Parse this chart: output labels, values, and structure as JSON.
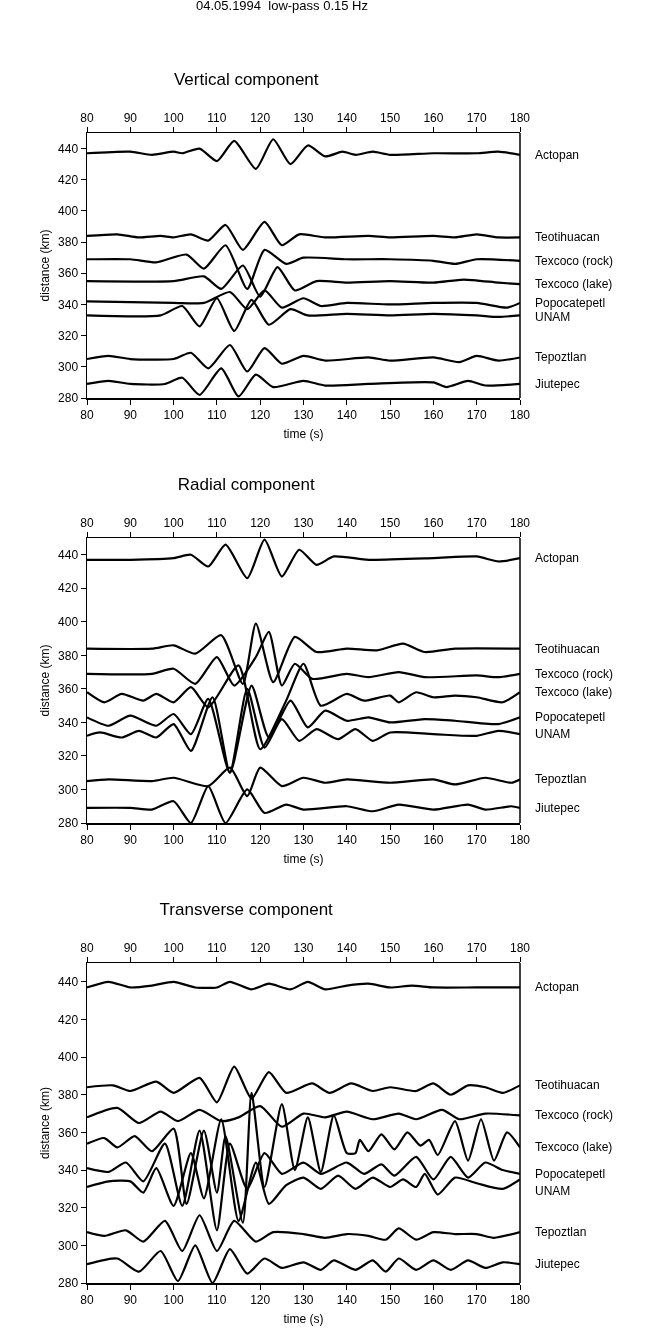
{
  "chart_data": [
    {
      "type": "line",
      "title": "Vertical component",
      "annotations": [
        "04.05.1994  low-pass 0.15 Hz"
      ],
      "xlabel": "time (s)",
      "ylabel": "distance (km)",
      "xlim": [
        80,
        180
      ],
      "xticks": [
        80,
        90,
        100,
        110,
        120,
        130,
        140,
        150,
        160,
        170,
        180
      ],
      "x2lim": [
        80,
        180
      ],
      "x2ticks": [
        80,
        90,
        100,
        110,
        120,
        130,
        140,
        150,
        160,
        170,
        180
      ],
      "ylim": [
        280,
        450
      ],
      "yticks": [
        280,
        300,
        320,
        340,
        360,
        380,
        400,
        420,
        440
      ],
      "grid": false,
      "legend": false,
      "marker": "none",
      "line_style": "solid",
      "series": [
        {
          "name": "Actopan",
          "color": "#000000",
          "x": [
            80,
            90,
            95,
            100,
            102,
            106,
            110,
            114,
            119,
            123,
            127,
            131,
            135,
            139,
            142,
            146,
            150,
            160,
            170,
            175,
            180
          ],
          "values": [
            437,
            438,
            436,
            438,
            437,
            440,
            432,
            445,
            427,
            446,
            430,
            442,
            435,
            438,
            436,
            438,
            436,
            437,
            437,
            438,
            436
          ]
        },
        {
          "name": "Teotihuacan",
          "color": "#000000",
          "x": [
            80,
            87,
            92,
            97,
            100,
            104,
            108,
            112,
            116,
            121,
            125,
            129,
            135,
            145,
            150,
            160,
            165,
            170,
            175,
            180
          ],
          "values": [
            384,
            385,
            383,
            384,
            383,
            385,
            381,
            391,
            375,
            393,
            378,
            385,
            383,
            384,
            383,
            384,
            383,
            385,
            383,
            383
          ]
        },
        {
          "name": "Texcoco (rock)",
          "color": "#000000",
          "x": [
            80,
            90,
            96,
            103,
            107,
            112,
            117,
            121,
            126,
            130,
            140,
            150,
            160,
            165,
            170,
            180
          ],
          "values": [
            369,
            369,
            367,
            372,
            363,
            378,
            350,
            375,
            366,
            370,
            369,
            369,
            368,
            366,
            369,
            368
          ]
        },
        {
          "name": "Texcoco (lake)",
          "color": "#000000",
          "x": [
            80,
            100,
            107,
            111,
            116,
            120,
            124,
            128,
            133,
            140,
            150,
            160,
            167,
            175,
            180
          ],
          "values": [
            355,
            355,
            358,
            350,
            365,
            345,
            364,
            349,
            355,
            354,
            355,
            354,
            356,
            354,
            353
          ]
        },
        {
          "name": "Popocatepetl",
          "color": "#000000",
          "x": [
            80,
            100,
            107,
            113,
            117,
            121,
            125,
            130,
            134,
            140,
            150,
            160,
            170,
            177,
            180
          ],
          "values": [
            342,
            341,
            341,
            348,
            337,
            349,
            338,
            344,
            339,
            341,
            340,
            341,
            341,
            338,
            341
          ]
        },
        {
          "name": "UNAM",
          "color": "#000000",
          "x": [
            80,
            97,
            102,
            106,
            110,
            114,
            118,
            122,
            127,
            131,
            140,
            150,
            160,
            170,
            175,
            180
          ],
          "values": [
            333,
            333,
            339,
            326,
            344,
            323,
            343,
            327,
            337,
            333,
            334,
            333,
            334,
            333,
            332,
            333
          ]
        },
        {
          "name": "Tepoztlan",
          "color": "#000000",
          "x": [
            80,
            85,
            90,
            100,
            104,
            108,
            113,
            117,
            121,
            125,
            130,
            135,
            145,
            150,
            160,
            166,
            170,
            175,
            180
          ],
          "values": [
            305,
            307,
            305,
            305,
            309,
            299,
            314,
            297,
            312,
            302,
            307,
            304,
            306,
            304,
            306,
            303,
            307,
            304,
            306
          ]
        },
        {
          "name": "Jiutepec",
          "color": "#000000",
          "x": [
            80,
            85,
            90,
            98,
            102,
            106,
            111,
            115,
            119,
            123,
            130,
            135,
            145,
            160,
            163,
            168,
            172,
            180
          ],
          "values": [
            289,
            291,
            289,
            289,
            293,
            282,
            299,
            281,
            295,
            287,
            291,
            288,
            289,
            290,
            287,
            291,
            288,
            289
          ]
        }
      ]
    },
    {
      "type": "line",
      "title": "Radial component",
      "xlabel": "time (s)",
      "ylabel": "distance (km)",
      "xlim": [
        80,
        180
      ],
      "xticks": [
        80,
        90,
        100,
        110,
        120,
        130,
        140,
        150,
        160,
        170,
        180
      ],
      "x2lim": [
        80,
        180
      ],
      "x2ticks": [
        80,
        90,
        100,
        110,
        120,
        130,
        140,
        150,
        160,
        170,
        180
      ],
      "ylim": [
        280,
        450
      ],
      "yticks": [
        280,
        300,
        320,
        340,
        360,
        380,
        400,
        420,
        440
      ],
      "grid": false,
      "legend": false,
      "marker": "none",
      "line_style": "solid",
      "series": [
        {
          "name": "Actopan",
          "color": "#000000",
          "x": [
            80,
            90,
            100,
            104,
            108,
            112,
            117,
            121,
            125,
            129,
            133,
            137,
            145,
            160,
            170,
            175,
            180
          ],
          "values": [
            437,
            437,
            438,
            440,
            433,
            446,
            426,
            449,
            427,
            443,
            434,
            439,
            437,
            438,
            439,
            436,
            438
          ]
        },
        {
          "name": "Teotihuacan",
          "color": "#000000",
          "x": [
            80,
            95,
            100,
            105,
            111,
            116,
            119,
            123,
            128,
            133,
            140,
            147,
            153,
            158,
            165,
            180
          ],
          "values": [
            384,
            384,
            386,
            381,
            392,
            363,
            399,
            364,
            391,
            382,
            384,
            383,
            387,
            382,
            384,
            384
          ]
        },
        {
          "name": "Texcoco (rock)",
          "color": "#000000",
          "x": [
            80,
            95,
            100,
            105,
            110,
            114,
            119,
            122,
            125,
            128,
            132,
            140,
            145,
            152,
            158,
            170,
            175,
            180
          ],
          "values": [
            369,
            369,
            372,
            363,
            379,
            362,
            379,
            394,
            362,
            375,
            366,
            369,
            367,
            370,
            367,
            368,
            367,
            369
          ]
        },
        {
          "name": "Texcoco (lake)",
          "color": "#000000",
          "x": [
            80,
            84,
            88,
            93,
            96,
            100,
            104,
            108,
            115,
            120,
            126,
            130,
            134,
            140,
            144,
            150,
            152,
            156,
            160,
            165,
            170,
            176,
            180
          ],
          "values": [
            358,
            352,
            357,
            353,
            357,
            352,
            361,
            349,
            374,
            324,
            353,
            375,
            350,
            357,
            353,
            356,
            352,
            358,
            355,
            356,
            355,
            352,
            358
          ]
        },
        {
          "name": "Popocatepetl",
          "color": "#000000",
          "x": [
            80,
            85,
            90,
            96,
            100,
            104,
            108,
            113,
            118,
            122,
            127,
            131,
            135,
            140,
            145,
            150,
            158,
            165,
            175,
            180
          ],
          "values": [
            343,
            338,
            344,
            338,
            345,
            333,
            354,
            310,
            362,
            331,
            353,
            337,
            347,
            341,
            343,
            340,
            342,
            341,
            339,
            343
          ]
        },
        {
          "name": "UNAM",
          "color": "#000000",
          "x": [
            80,
            83,
            88,
            92,
            96,
            100,
            104,
            109,
            113,
            117,
            121,
            125,
            129,
            133,
            138,
            142,
            146,
            150,
            160,
            170,
            175,
            180
          ],
          "values": [
            332,
            334,
            331,
            335,
            331,
            339,
            323,
            355,
            310,
            360,
            325,
            342,
            329,
            336,
            330,
            336,
            329,
            334,
            333,
            332,
            335,
            333
          ]
        },
        {
          "name": "Tepoztlan",
          "color": "#000000",
          "x": [
            80,
            85,
            95,
            100,
            108,
            113,
            117,
            120,
            125,
            130,
            135,
            140,
            150,
            160,
            165,
            172,
            178,
            180
          ],
          "values": [
            305,
            306,
            305,
            307,
            302,
            313,
            296,
            313,
            302,
            307,
            304,
            306,
            304,
            306,
            303,
            307,
            304,
            306
          ]
        },
        {
          "name": "Jiutepec",
          "color": "#000000",
          "x": [
            80,
            90,
            95,
            100,
            104,
            108,
            112,
            117,
            121,
            126,
            130,
            140,
            146,
            152,
            160,
            168,
            172,
            178,
            180
          ],
          "values": [
            289,
            289,
            288,
            293,
            280,
            302,
            280,
            300,
            286,
            291,
            288,
            290,
            287,
            291,
            288,
            291,
            288,
            290,
            289
          ]
        }
      ]
    },
    {
      "type": "line",
      "title": "Transverse component",
      "xlabel": "time (s)",
      "ylabel": "distance (km)",
      "xlim": [
        80,
        180
      ],
      "xticks": [
        80,
        90,
        100,
        110,
        120,
        130,
        140,
        150,
        160,
        170,
        180
      ],
      "x2lim": [
        80,
        180
      ],
      "x2ticks": [
        80,
        90,
        100,
        110,
        120,
        130,
        140,
        150,
        160,
        170,
        180
      ],
      "ylim": [
        280,
        450
      ],
      "yticks": [
        280,
        300,
        320,
        340,
        360,
        380,
        400,
        420,
        440
      ],
      "grid": false,
      "legend": false,
      "marker": "none",
      "line_style": "solid",
      "series": [
        {
          "name": "Actopan",
          "color": "#000000",
          "x": [
            80,
            85,
            90,
            95,
            100,
            105,
            110,
            113,
            118,
            122,
            127,
            131,
            135,
            140,
            145,
            150,
            155,
            160,
            170,
            180
          ],
          "values": [
            437,
            440,
            437,
            438,
            440,
            437,
            437,
            440,
            436,
            439,
            436,
            440,
            436,
            438,
            439,
            437,
            438,
            437,
            437,
            437
          ]
        },
        {
          "name": "Teotihuacan",
          "color": "#000000",
          "x": [
            80,
            86,
            90,
            96,
            100,
            106,
            110,
            114,
            118,
            122,
            126,
            132,
            136,
            141,
            146,
            150,
            156,
            160,
            164,
            168,
            172,
            176,
            180
          ],
          "values": [
            384,
            385,
            382,
            387,
            381,
            389,
            376,
            395,
            378,
            392,
            381,
            386,
            381,
            386,
            382,
            384,
            382,
            386,
            380,
            385,
            384,
            381,
            385
          ]
        },
        {
          "name": "Texcoco (rock)",
          "color": "#000000",
          "x": [
            80,
            87,
            92,
            97,
            101,
            106,
            111,
            115,
            120,
            125,
            130,
            135,
            140,
            146,
            152,
            156,
            162,
            166,
            172,
            180
          ],
          "values": [
            368,
            373,
            365,
            371,
            366,
            372,
            366,
            368,
            374,
            363,
            370,
            368,
            371,
            367,
            370,
            367,
            372,
            367,
            370,
            369
          ]
        },
        {
          "name": "Texcoco (lake)",
          "color": "#000000",
          "x": [
            80,
            84,
            87,
            91,
            95,
            100,
            103,
            107,
            110,
            112,
            116,
            118,
            121,
            125,
            128,
            131,
            134,
            137,
            140,
            142,
            143,
            145,
            148,
            151,
            154,
            157,
            159,
            161,
            165,
            168,
            171,
            174,
            177,
            180
          ],
          "values": [
            354,
            357,
            352,
            358,
            350,
            362,
            322,
            361,
            328,
            358,
            312,
            381,
            331,
            375,
            340,
            368,
            339,
            369,
            349,
            349,
            356,
            350,
            359,
            351,
            360,
            353,
            356,
            348,
            366,
            345,
            367,
            345,
            360,
            352
          ]
        },
        {
          "name": "Popocatepetl",
          "color": "#000000",
          "x": [
            80,
            85,
            89,
            93,
            98,
            102,
            106,
            110,
            113,
            117,
            121,
            125,
            130,
            134,
            140,
            144,
            148,
            151,
            156,
            160,
            164,
            168,
            172,
            176,
            180
          ],
          "values": [
            341,
            339,
            344,
            334,
            354,
            321,
            361,
            308,
            354,
            330,
            349,
            338,
            344,
            338,
            344,
            338,
            343,
            337,
            347,
            335,
            347,
            336,
            344,
            340,
            338
          ]
        },
        {
          "name": "UNAM",
          "color": "#000000",
          "x": [
            80,
            85,
            90,
            93,
            96,
            100,
            104,
            107,
            111,
            115,
            119,
            122,
            126,
            130,
            134,
            138,
            142,
            146,
            150,
            153,
            156,
            158,
            161,
            165,
            170,
            176,
            180
          ],
          "values": [
            331,
            334,
            334,
            328,
            341,
            321,
            349,
            325,
            367,
            313,
            344,
            322,
            332,
            336,
            330,
            337,
            330,
            336,
            331,
            335,
            331,
            338,
            327,
            336,
            333,
            330,
            335
          ]
        },
        {
          "name": "Tepoztlan",
          "color": "#000000",
          "x": [
            80,
            84,
            89,
            93,
            98,
            102,
            106,
            110,
            114,
            119,
            123,
            130,
            135,
            140,
            145,
            149,
            152,
            156,
            160,
            165,
            170,
            174,
            180
          ],
          "values": [
            307,
            305,
            308,
            302,
            313,
            297,
            316,
            297,
            313,
            302,
            307,
            306,
            304,
            306,
            305,
            303,
            309,
            303,
            307,
            306,
            306,
            304,
            307
          ]
        },
        {
          "name": "Jiutepec",
          "color": "#000000",
          "x": [
            80,
            87,
            92,
            97,
            101,
            105,
            109,
            113,
            117,
            121,
            125,
            130,
            134,
            137,
            142,
            146,
            149,
            152,
            156,
            160,
            164,
            168,
            172,
            176,
            180
          ],
          "values": [
            290,
            293,
            286,
            297,
            281,
            300,
            280,
            298,
            285,
            293,
            288,
            291,
            287,
            292,
            287,
            292,
            286,
            293,
            287,
            292,
            287,
            292,
            288,
            291,
            290
          ]
        }
      ]
    }
  ]
}
